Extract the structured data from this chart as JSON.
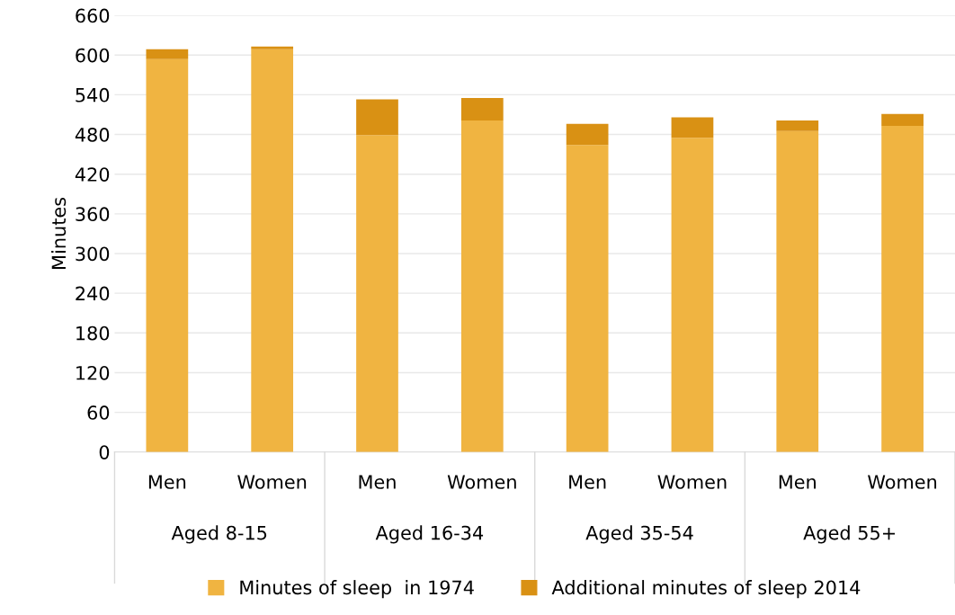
{
  "chart_data": {
    "type": "bar",
    "stacked": true,
    "ylabel": "Minutes",
    "categories": [
      "Men",
      "Women",
      "Men",
      "Women",
      "Men",
      "Women",
      "Men",
      "Women"
    ],
    "series": [
      {
        "name": "Minutes of sleep  in 1974",
        "color": "#f0b441",
        "values": [
          594,
          609,
          479,
          501,
          464,
          475,
          485,
          493
        ]
      },
      {
        "name": "Additional minutes of sleep 2014",
        "color": "#d99114",
        "values": [
          15,
          4,
          54,
          34,
          32,
          31,
          16,
          18
        ]
      }
    ],
    "annotations": [
      "Aged 8-15",
      "Aged 16-34",
      "Aged 35-54",
      "Aged 55+"
    ],
    "ylim": [
      0,
      660
    ],
    "yticks": [
      0,
      60,
      120,
      180,
      240,
      300,
      360,
      420,
      480,
      540,
      600,
      660
    ],
    "grid": "y",
    "legend": "bottom"
  }
}
